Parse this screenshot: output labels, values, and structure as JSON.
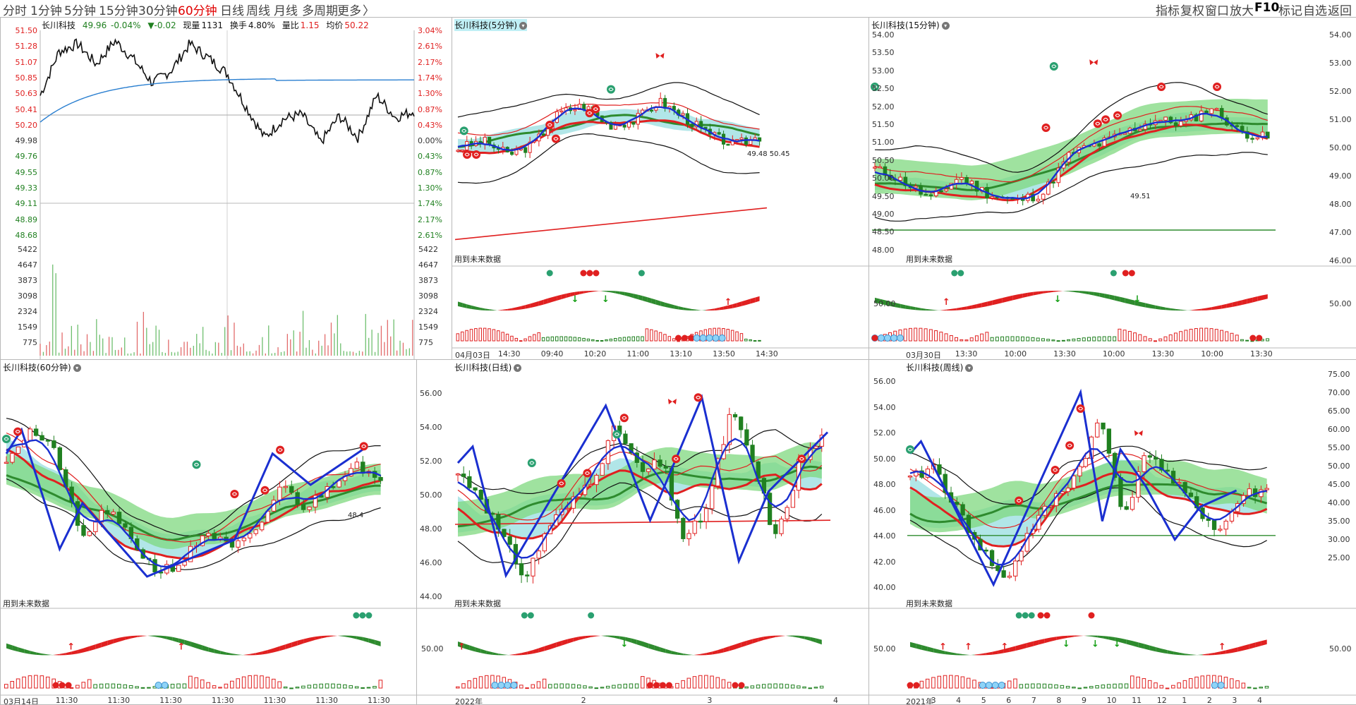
{
  "toolbar": {
    "timeframes": [
      "分时",
      "1分钟",
      "5分钟",
      "15分钟",
      "30分钟",
      "60分钟",
      "日线",
      "周线",
      "月线",
      "多周期",
      "更多"
    ],
    "active_index": 5,
    "more_arrow": "〉",
    "right_tools": [
      "指标",
      "复权",
      "窗口",
      "放大",
      "F10",
      "标记",
      "自选",
      "返回"
    ]
  },
  "intraday": {
    "name": "长川科技",
    "price": "49.96",
    "pct": "-0.04%",
    "chg": "▼-0.02",
    "vol_label": "现量",
    "vol": "1131",
    "turnover_label": "换手",
    "turnover": "4.80%",
    "ratio_label": "量比",
    "ratio": "1.15",
    "avg_label": "均价",
    "avg": "50.22",
    "price_ticks": [
      "51.50",
      "51.28",
      "51.07",
      "50.85",
      "50.63",
      "50.41",
      "50.20",
      "49.98",
      "49.76",
      "49.55",
      "49.33",
      "49.11",
      "48.89",
      "48.68"
    ],
    "pct_ticks": [
      "3.04%",
      "2.61%",
      "2.17%",
      "1.74%",
      "1.30%",
      "0.87%",
      "0.43%",
      "0.00%",
      "0.43%",
      "0.87%",
      "1.30%",
      "1.74%",
      "2.17%",
      "2.61%"
    ],
    "vol_ticks": [
      "5422",
      "4647",
      "3873",
      "3098",
      "2324",
      "1549",
      "775"
    ]
  },
  "panes": {
    "m5": {
      "title": "长川科技(5分钟)",
      "future_note": "用到未来数据",
      "price_note": "49.48 50.45",
      "x_ticks": [
        "04月03日",
        "14:30",
        "09:40",
        "10:20",
        "11:00",
        "13:10",
        "13:50",
        "14:30"
      ]
    },
    "m15": {
      "title": "长川科技(15分钟)",
      "future_note": "用到未来数据",
      "price_note": "49.51",
      "y_ticks": [
        "54.00",
        "53.50",
        "53.00",
        "52.50",
        "52.00",
        "51.50",
        "51.00",
        "50.50",
        "50.00",
        "49.50",
        "49.00",
        "48.50",
        "48.00"
      ],
      "right_ticks": [
        "54.00",
        "53.00",
        "52.00",
        "51.00",
        "50.00",
        "49.00",
        "48.00",
        "47.00",
        "46.00"
      ],
      "sub_tick": "50.00",
      "sub_right_tick": "50.00",
      "x_ticks": [
        "03月30日",
        "13:30",
        "10:00",
        "13:30",
        "10:00",
        "13:30",
        "10:00",
        "13:30"
      ]
    },
    "m60": {
      "title": "长川科技(60分钟)",
      "future_note": "用到未来数据",
      "price_note": "48.4",
      "x_ticks": [
        "03月14日",
        "11:30",
        "11:30",
        "11:30",
        "11:30",
        "11:30",
        "11:30",
        "11:30"
      ]
    },
    "day": {
      "title": "长川科技(日线)",
      "future_note": "用到未来数据",
      "y_ticks": [
        "56.00",
        "54.00",
        "52.00",
        "50.00",
        "48.00",
        "46.00",
        "44.00"
      ],
      "sub_tick": "50.00",
      "x_ticks": [
        "2022年",
        "2",
        "3",
        "4"
      ]
    },
    "week": {
      "title": "长川科技(周线)",
      "future_note": "用到未来数据",
      "y_ticks": [
        "56.00",
        "54.00",
        "52.00",
        "50.00",
        "48.00",
        "46.00",
        "44.00",
        "42.00",
        "40.00"
      ],
      "right_ticks": [
        "75.00",
        "70.00",
        "65.00",
        "60.00",
        "55.00",
        "50.00",
        "45.00",
        "40.00",
        "35.00",
        "30.00",
        "25.00"
      ],
      "sub_tick": "50.00",
      "sub_right_tick": "50.00",
      "x_ticks": [
        "2021年",
        "3",
        "4",
        "5",
        "6",
        "7",
        "8",
        "9",
        "10",
        "11",
        "12",
        "1",
        "2",
        "3",
        "4"
      ]
    }
  },
  "colors": {
    "up": "#e02020",
    "down": "#208020",
    "ribbon": "#a9e3e6",
    "green_fill": "#7fd87f",
    "blue": "#1a2fd0"
  }
}
